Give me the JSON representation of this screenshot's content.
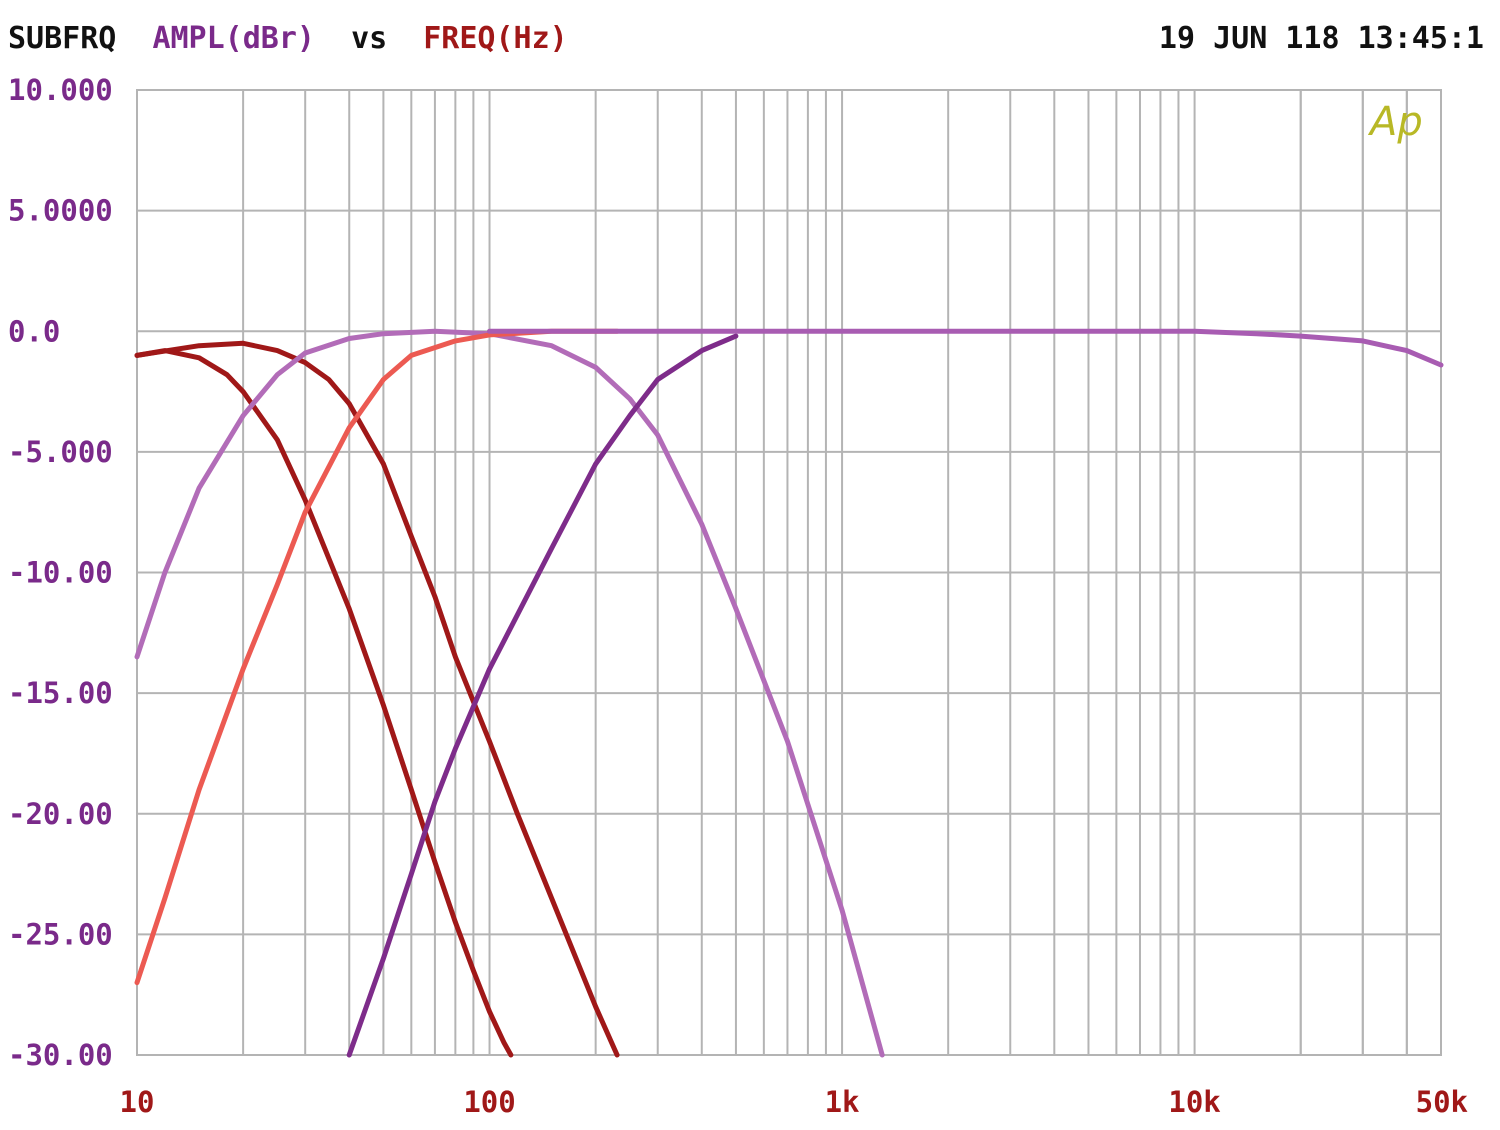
{
  "header": {
    "left_word": "SUBFRQ",
    "y_quantity": "AMPL(dBr)",
    "vs_word": "vs",
    "x_quantity": "FREQ(Hz)",
    "timestamp": "19 JUN 118 13:45:1"
  },
  "logo_text": "Ap",
  "colors": {
    "background": "#ffffff",
    "grid": "#b4b4b4",
    "header_text": "#111111",
    "y_label_color": "#7a2a8a",
    "x_label_color": "#a01818",
    "y_tick_color": "#7a2a8a",
    "x_tick_color": "#a01818",
    "logo_color": "#b8b826"
  },
  "chart_data": {
    "type": "line",
    "x_scale": "log",
    "xlim": [
      10,
      50000
    ],
    "ylim": [
      -30,
      10
    ],
    "grid": true,
    "y_ticks": [
      {
        "value": 10,
        "label": "10.000"
      },
      {
        "value": 5,
        "label": "5.0000"
      },
      {
        "value": 0,
        "label": "0.0"
      },
      {
        "value": -5,
        "label": "-5.000"
      },
      {
        "value": -10,
        "label": "-10.00"
      },
      {
        "value": -15,
        "label": "-15.00"
      },
      {
        "value": -20,
        "label": "-20.00"
      },
      {
        "value": -25,
        "label": "-25.00"
      },
      {
        "value": -30,
        "label": "-30.00"
      }
    ],
    "x_ticks": [
      {
        "value": 10,
        "label": "10"
      },
      {
        "value": 100,
        "label": "100"
      },
      {
        "value": 1000,
        "label": "1k"
      },
      {
        "value": 10000,
        "label": "10k"
      },
      {
        "value": 50000,
        "label": "50k"
      }
    ],
    "series": [
      {
        "color": "#a01818",
        "points": [
          [
            10,
            -1.0
          ],
          [
            12,
            -0.8
          ],
          [
            15,
            -1.1
          ],
          [
            18,
            -1.8
          ],
          [
            20,
            -2.5
          ],
          [
            25,
            -4.5
          ],
          [
            30,
            -7.0
          ],
          [
            40,
            -11.5
          ],
          [
            50,
            -15.5
          ],
          [
            60,
            -19.0
          ],
          [
            70,
            -22.0
          ],
          [
            80,
            -24.5
          ],
          [
            90,
            -26.5
          ],
          [
            100,
            -28.2
          ],
          [
            110,
            -29.5
          ],
          [
            115,
            -30.0
          ]
        ]
      },
      {
        "color": "#a01818",
        "points": [
          [
            10,
            -1.0
          ],
          [
            15,
            -0.6
          ],
          [
            20,
            -0.5
          ],
          [
            25,
            -0.8
          ],
          [
            30,
            -1.3
          ],
          [
            35,
            -2.0
          ],
          [
            40,
            -3.0
          ],
          [
            50,
            -5.5
          ],
          [
            60,
            -8.5
          ],
          [
            70,
            -11.0
          ],
          [
            80,
            -13.5
          ],
          [
            100,
            -17.0
          ],
          [
            120,
            -20.0
          ],
          [
            150,
            -23.5
          ],
          [
            200,
            -28.0
          ],
          [
            230,
            -30.0
          ]
        ]
      },
      {
        "color": "#b26cb8",
        "points": [
          [
            10,
            -13.5
          ],
          [
            12,
            -10.0
          ],
          [
            15,
            -6.5
          ],
          [
            20,
            -3.5
          ],
          [
            25,
            -1.8
          ],
          [
            30,
            -0.9
          ],
          [
            40,
            -0.3
          ],
          [
            50,
            -0.1
          ],
          [
            70,
            0.0
          ],
          [
            100,
            -0.1
          ],
          [
            150,
            -0.6
          ],
          [
            200,
            -1.5
          ],
          [
            250,
            -2.8
          ],
          [
            300,
            -4.3
          ],
          [
            400,
            -8.0
          ],
          [
            500,
            -11.5
          ],
          [
            700,
            -17.0
          ],
          [
            1000,
            -24.0
          ],
          [
            1300,
            -30.0
          ]
        ]
      },
      {
        "color": "#ec5a52",
        "points": [
          [
            10,
            -27.0
          ],
          [
            12,
            -23.5
          ],
          [
            15,
            -19.0
          ],
          [
            20,
            -14.0
          ],
          [
            25,
            -10.5
          ],
          [
            30,
            -7.5
          ],
          [
            40,
            -4.0
          ],
          [
            50,
            -2.0
          ],
          [
            60,
            -1.0
          ],
          [
            80,
            -0.4
          ],
          [
            100,
            -0.15
          ],
          [
            150,
            0.0
          ],
          [
            230,
            0.0
          ]
        ]
      },
      {
        "color": "#7e2c8a",
        "points": [
          [
            40,
            -30.0
          ],
          [
            50,
            -26.0
          ],
          [
            60,
            -22.5
          ],
          [
            70,
            -19.5
          ],
          [
            80,
            -17.3
          ],
          [
            100,
            -14.0
          ],
          [
            150,
            -9.0
          ],
          [
            200,
            -5.5
          ],
          [
            250,
            -3.5
          ],
          [
            300,
            -2.0
          ],
          [
            400,
            -0.8
          ],
          [
            500,
            -0.2
          ]
        ]
      },
      {
        "color": "#a85cb2",
        "points": [
          [
            100,
            0.0
          ],
          [
            300,
            0.0
          ],
          [
            1000,
            0.0
          ],
          [
            5000,
            0.0
          ],
          [
            10000,
            0.0
          ],
          [
            15000,
            -0.1
          ],
          [
            20000,
            -0.2
          ],
          [
            30000,
            -0.4
          ],
          [
            40000,
            -0.8
          ],
          [
            50000,
            -1.4
          ]
        ]
      }
    ]
  }
}
